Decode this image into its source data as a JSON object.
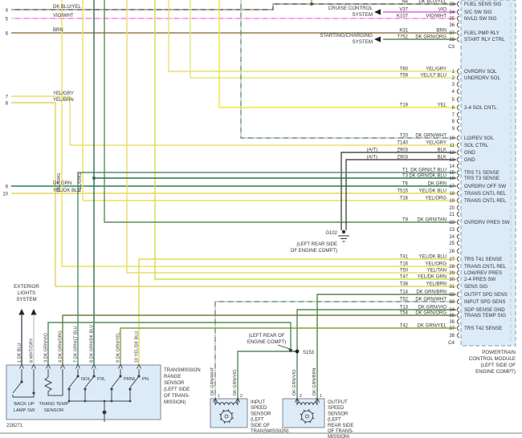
{
  "drawing_number": "228271",
  "systems": {
    "cruise": {
      "line1": "CRUISE CONTROL",
      "line2": "SYSTEM"
    },
    "starting": {
      "line1": "STARTING/CHARGING",
      "line2": "SYSTEM"
    },
    "exterior": {
      "line1": "EXTERIOR",
      "line2": "LIGHTS",
      "line3": "SYSTEM"
    }
  },
  "pcm": {
    "label": [
      "POWERTRAIN",
      "CONTROL MODULE",
      "(LEFT SIDE OF",
      "ENGINE COMPT)"
    ],
    "c3": {
      "name": "C3",
      "pins": [
        {
          "num": "23",
          "circuit": "N4",
          "color": "DK BLU/YEL",
          "signal": "FUEL SENS SIG"
        },
        {
          "num": "34",
          "circuit": "V37",
          "color": "VIO",
          "signal": "S/C SW SIG"
        },
        {
          "num": "35",
          "circuit": "K107",
          "color": "VIO/WHT",
          "signal": "NVLD SW SIG"
        },
        {
          "num": "36"
        },
        {
          "num": "37",
          "circuit": "K31",
          "color": "BRN",
          "signal": "FUEL PMP RLY"
        },
        {
          "num": "38",
          "circuit": "T752",
          "color": "DK GRN/ORG",
          "signal": "START RLY CTRL"
        }
      ]
    },
    "c4": {
      "name": "C4",
      "pins": [
        {
          "num": "1",
          "circuit": "T60",
          "color": "YEL/GRY",
          "signal": "OVRDRV SOL"
        },
        {
          "num": "2",
          "circuit": "T59",
          "color": "YEL/LT BLU",
          "signal": "UNDRDRV SOL"
        },
        {
          "num": "3"
        },
        {
          "num": "4"
        },
        {
          "num": "5"
        },
        {
          "num": "6",
          "circuit": "T19",
          "color": "YEL",
          "signal": "2-4 SOL CNTL"
        },
        {
          "num": "7"
        },
        {
          "num": "8"
        },
        {
          "num": "9"
        },
        {
          "num": "10",
          "circuit": "T20",
          "color": "DK GRN/WHT",
          "signal": "LO/REV SOL"
        },
        {
          "num": "11",
          "circuit": "T140",
          "color": "YEL/GRY",
          "signal": "SOL CTRL"
        },
        {
          "num": "12",
          "circuit": "Z903",
          "color": "BLK",
          "signal": "GND",
          "tag": "(A/T)"
        },
        {
          "num": "13",
          "circuit": "Z903",
          "color": "BLK",
          "signal": "GND",
          "tag": "(A/T)"
        },
        {
          "num": "14"
        },
        {
          "num": "15",
          "circuit": "T1",
          "color": "DK GRN/LT BLU",
          "signal": "TRS T1 SENSE"
        },
        {
          "num": "16",
          "circuit": "T3",
          "color": "DK GRN/DK BLU",
          "signal": "TRS T3 SENSE"
        },
        {
          "num": "17",
          "circuit": "T6",
          "color": "DK GRN",
          "signal": "OVRDRV OFF SW"
        },
        {
          "num": "18",
          "circuit": "T515",
          "color": "YEL/DK BLU",
          "signal": "TRANS CNTL REL"
        },
        {
          "num": "19",
          "circuit": "T16",
          "color": "YEL/ORG",
          "signal": "TRANS CNTL REL"
        },
        {
          "num": "20"
        },
        {
          "num": "21"
        },
        {
          "num": "22",
          "circuit": "T9",
          "color": "DK GRN/TAN",
          "signal": "OVRDRV PRES SW"
        },
        {
          "num": "23"
        },
        {
          "num": "24"
        },
        {
          "num": "25"
        },
        {
          "num": "26"
        },
        {
          "num": "27",
          "circuit": "T41",
          "color": "YEL/DK BLU",
          "signal": "TRS T41 SENSE"
        },
        {
          "num": "28",
          "circuit": "T16",
          "color": "YEL/ORG",
          "signal": "TRANS CNTL REL"
        },
        {
          "num": "29",
          "circuit": "T50",
          "color": "YEL/TAN",
          "signal": "LOW/REV PRES"
        },
        {
          "num": "30",
          "circuit": "T47",
          "color": "YEL/DK GRN",
          "signal": "2-4 PRES SW"
        },
        {
          "num": "31",
          "circuit": "T38",
          "color": "YEL/BRN",
          "signal": "SENS SIG"
        },
        {
          "num": "32",
          "circuit": "T14",
          "color": "DK GRN/BRN",
          "signal": "OUTPT SPD SENS"
        },
        {
          "num": "33",
          "circuit": "T52",
          "color": "DK GRN/WHT",
          "signal": "INPUT SPD SENS"
        },
        {
          "num": "34",
          "circuit": "T13",
          "color": "DK GRN/VIO",
          "signal": "SDP SENSE GND"
        },
        {
          "num": "35",
          "circuit": "T54",
          "color": "DK GRN/ORG",
          "signal": "TRANS TEMP SIG"
        },
        {
          "num": "36"
        },
        {
          "num": "37",
          "circuit": "T42",
          "color": "DK GRN/YEL",
          "signal": "TRS T42 SENSE"
        },
        {
          "num": "38"
        }
      ]
    }
  },
  "left_lines": [
    {
      "num": "4",
      "label": "DK BLU/YEL"
    },
    {
      "num": "5",
      "label": "VIO/WHT"
    },
    {
      "num": "6",
      "label": "BRN"
    },
    {
      "num": "7",
      "label": "YEL/GRY"
    },
    {
      "num": "8",
      "label": "YEL/BRN"
    },
    {
      "num": "9",
      "label": "DK GRN"
    },
    {
      "num": "10",
      "label": "YEL/DK BLU"
    }
  ],
  "vertical_labels": [
    "YEL/ORG",
    "YEL/ORG"
  ],
  "ground": {
    "name": "G102",
    "location": [
      "(LEFT REAR SIDE",
      "OF ENGINE COMPT)"
    ]
  },
  "splice": {
    "name": "S153",
    "location": [
      "(LEFT REAR OF",
      "ENGINE COMPT)"
    ]
  },
  "range_sensor": {
    "label": [
      "TRANSMISSION",
      "RANGE",
      "SENSOR",
      "(LEFT SIDE",
      "OF TRANS-",
      "MISSION)"
    ],
    "wire_labels": [
      "1 DK BLU",
      "6 WHT/GRY",
      "3 DK GRN/VIO",
      "4 DK GRN/ORG",
      "7 DK GRN/LT BLU",
      "8 DK GRN/DK BLU",
      "9 DK GRN/YEL",
      "10 YEL/DK BLU"
    ],
    "switches": [
      "NOL",
      "P3L",
      "PRNL",
      "PN"
    ],
    "backup_label": [
      "BACK UP",
      "LAMP SW"
    ],
    "temp_label": [
      "TRANS TEMP",
      "SENSOR"
    ]
  },
  "input_sensor": {
    "label": [
      "INPUT",
      "SPEED",
      "SENSOR",
      "(LEFT",
      "SIDE OF",
      "TRANSMISSION)"
    ],
    "pins": [
      "1",
      "2"
    ],
    "wire_labels": [
      "DK GRN/WHT",
      "DK GRN/VIO"
    ]
  },
  "output_sensor": {
    "label": [
      "OUTPUT",
      "SPEED",
      "SENSOR",
      "(LEFT",
      "REAR SIDE",
      "OF TRANS-",
      "MISSION)"
    ],
    "pins": [
      "2",
      "1"
    ],
    "wire_labels": [
      "DK GRN/VIO",
      "DK GRN/BRN"
    ]
  },
  "colors": {
    "DK BLU/YEL": "#505c6e",
    "VIO": "#e95fe0",
    "VIO/WHT": "#ef83e6",
    "BRN": "#8f7f4a",
    "DK GRN/ORG": "#6e7d3e",
    "YEL/GRY": "#e9e168",
    "YEL/LT BLU": "#dce97e",
    "YEL": "#f2e43c",
    "DK GRN/WHT": "#6f9070",
    "DK GRN": "#2f7d4c",
    "YEL/DK BLU": "#e2d858",
    "YEL/ORG": "#eedf55",
    "DK GRN/TAN": "#5d8a58",
    "YEL/TAN": "#e8dc6e",
    "YEL/DK GRN": "#cfdd4e",
    "YEL/BRN": "#ddd35e",
    "DK GRN/LT BLU": "#4f8f6f",
    "DK GRN/DK BLU": "#2f6f52",
    "DK GRN/BRN": "#57833f",
    "DK GRN/VIO": "#4f8a5f",
    "DK GRN/YEL": "#7fa13f",
    "BLK": "#4a4a4a",
    "DK BLU": "#3e5068",
    "WHT/GRY": "#c9c9c9",
    "box_fill": "#dcebf8",
    "ink": "#333333"
  }
}
